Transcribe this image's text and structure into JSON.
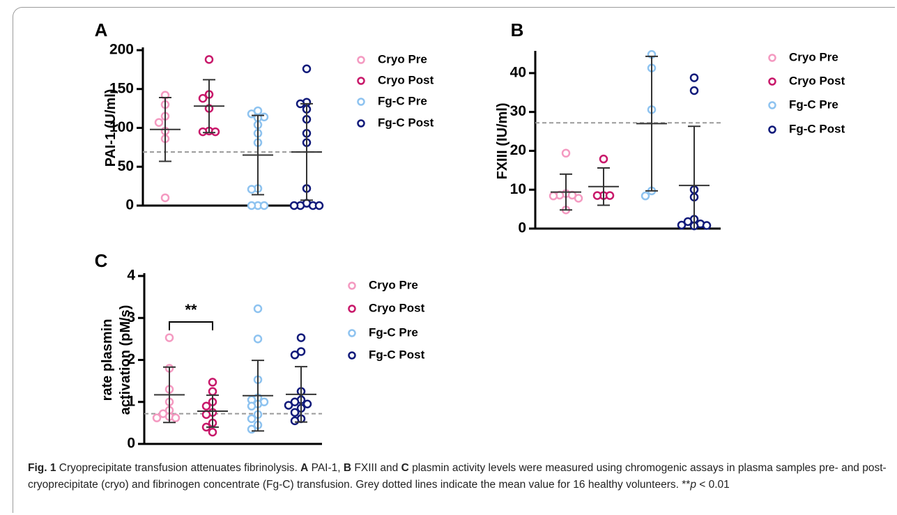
{
  "chart_data": [
    {
      "type": "dot",
      "panel_label": "A",
      "ylabel": [
        "PAI-1 (U/ml)"
      ],
      "ylim": [
        0,
        200
      ],
      "yticks": [
        0,
        50,
        100,
        150,
        200
      ],
      "reference_line": 69,
      "legend": "right",
      "series": [
        {
          "name": "Cryo Pre",
          "color": "#f49ac1",
          "values": [
            142,
            130,
            115,
            107,
            96,
            86,
            10
          ],
          "mean": 98,
          "sd": 41
        },
        {
          "name": "Cryo Post",
          "color": "#c8186a",
          "values": [
            188,
            143,
            138,
            125,
            96,
            95,
            95
          ],
          "mean": 128,
          "sd": 34
        },
        {
          "name": "Fg-C Pre",
          "color": "#8ec3f0",
          "values": [
            122,
            118,
            114,
            113,
            104,
            93,
            81,
            22,
            21,
            0,
            0,
            0
          ],
          "mean": 65,
          "sd": 51
        },
        {
          "name": "Fg-C Post",
          "color": "#101a7a",
          "values": [
            176,
            133,
            131,
            124,
            111,
            93,
            81,
            22,
            3,
            0,
            0,
            0,
            0
          ],
          "mean": 69,
          "sd": 62
        }
      ]
    },
    {
      "type": "dot",
      "panel_label": "B",
      "ylabel": [
        "FXIII (IU/ml)"
      ],
      "ylim": [
        0,
        45
      ],
      "yticks": [
        0,
        10,
        20,
        30,
        40
      ],
      "reference_line": 27.2,
      "legend": "right",
      "series": [
        {
          "name": "Cryo Pre",
          "color": "#f49ac1",
          "values": [
            19.4,
            9,
            8.6,
            8.6,
            8.4,
            7.8,
            4.8
          ],
          "mean": 9.4,
          "sd": 4.6
        },
        {
          "name": "Cryo Post",
          "color": "#c8186a",
          "values": [
            17.9,
            8.5,
            8.5,
            8.5
          ],
          "mean": 10.8,
          "sd": 4.8
        },
        {
          "name": "Fg-C Pre",
          "color": "#8ec3f0",
          "values": [
            44.8,
            41.3,
            30.6,
            9.7,
            8.4
          ],
          "mean": 27,
          "sd": 17.3
        },
        {
          "name": "Fg-C Post",
          "color": "#101a7a",
          "values": [
            38.8,
            35.5,
            10,
            8.1,
            2.4,
            1.8,
            1.2,
            0.9,
            0.8,
            0.7
          ],
          "mean": 11.1,
          "sd": 15.2
        }
      ]
    },
    {
      "type": "dot",
      "panel_label": "C",
      "ylabel": [
        "rate plasmin",
        "activation (pM/s)"
      ],
      "ylim": [
        0,
        4
      ],
      "yticks": [
        0,
        1,
        2,
        3,
        4
      ],
      "reference_line": 0.72,
      "legend": "right",
      "significance": "**",
      "series": [
        {
          "name": "Cryo Pre",
          "color": "#f49ac1",
          "values": [
            2.53,
            1.8,
            1.3,
            1.0,
            0.8,
            0.72,
            0.65,
            0.62,
            0.62
          ],
          "mean": 1.17,
          "sd": 0.66
        },
        {
          "name": "Cryo Post",
          "color": "#c8186a",
          "values": [
            1.47,
            1.25,
            1.0,
            0.9,
            0.75,
            0.7,
            0.5,
            0.4,
            0.28
          ],
          "mean": 0.78,
          "sd": 0.38
        },
        {
          "name": "Fg-C Pre",
          "color": "#8ec3f0",
          "values": [
            3.22,
            2.5,
            1.53,
            1.1,
            1.05,
            1.0,
            0.95,
            0.9,
            0.7,
            0.6,
            0.45,
            0.35
          ],
          "mean": 1.15,
          "sd": 0.84
        },
        {
          "name": "Fg-C Post",
          "color": "#101a7a",
          "values": [
            2.53,
            2.2,
            2.12,
            1.25,
            1.05,
            1.0,
            0.95,
            0.92,
            0.85,
            0.75,
            0.6,
            0.55
          ],
          "mean": 1.18,
          "sd": 0.66
        }
      ]
    }
  ],
  "caption": [
    {
      "text": "Fig. 1",
      "style": "bold"
    },
    {
      "text": " Cryoprecipitate transfusion attenuates fibrinolysis. "
    },
    {
      "text": "A",
      "style": "bold"
    },
    {
      "text": " PAI-1, "
    },
    {
      "text": "B",
      "style": "bold"
    },
    {
      "text": " FXIII and "
    },
    {
      "text": "C",
      "style": "bold"
    },
    {
      "text": " plasmin activity levels were measured using chromogenic assays in plasma samples pre- and post-cryoprecipitate (cryo) and fibrinogen concentrate (Fg-C) transfusion. Grey dotted lines indicate the mean value for 16 healthy volunteers. **"
    },
    {
      "text": "p",
      "style": "italic"
    },
    {
      "text": " < 0.01"
    }
  ]
}
